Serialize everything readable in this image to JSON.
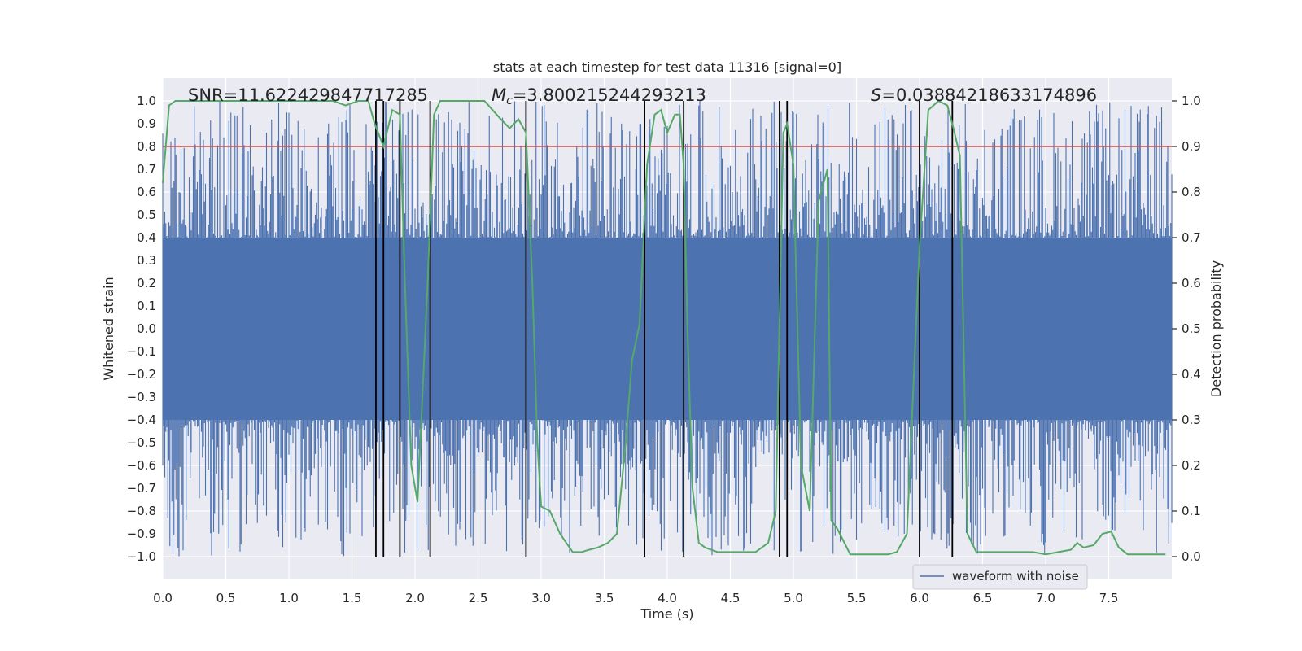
{
  "chart_data": {
    "type": "line",
    "title": "stats at each timestep for test data 11316 [signal=0]",
    "xlabel": "Time (s)",
    "ylabel_left": "Whitened strain",
    "ylabel_right": "Detection probability",
    "xlim": [
      0,
      8
    ],
    "ylim_left": [
      -1.1,
      1.1
    ],
    "ylim_right": [
      -0.05,
      1.05
    ],
    "x_ticks": [
      0.0,
      0.5,
      1.0,
      1.5,
      2.0,
      2.5,
      3.0,
      3.5,
      4.0,
      4.5,
      5.0,
      5.5,
      6.0,
      6.5,
      7.0,
      7.5
    ],
    "x_tick_labels": [
      "0.0",
      "0.5",
      "1.0",
      "1.5",
      "2.0",
      "2.5",
      "3.0",
      "3.5",
      "4.0",
      "4.5",
      "5.0",
      "5.5",
      "6.0",
      "6.5",
      "7.0",
      "7.5"
    ],
    "y_left_ticks": [
      -1.0,
      -0.9,
      -0.8,
      -0.7,
      -0.6,
      -0.5,
      -0.4,
      -0.3,
      -0.2,
      -0.1,
      0.0,
      0.1,
      0.2,
      0.3,
      0.4,
      0.5,
      0.6,
      0.7,
      0.8,
      0.9,
      1.0
    ],
    "y_left_tick_labels": [
      "−1.0",
      "−0.9",
      "−0.8",
      "−0.7",
      "−0.6",
      "−0.5",
      "−0.4",
      "−0.3",
      "−0.2",
      "−0.1",
      "0.0",
      "0.1",
      "0.2",
      "0.3",
      "0.4",
      "0.5",
      "0.6",
      "0.7",
      "0.8",
      "0.9",
      "1.0"
    ],
    "y_right_ticks": [
      0.0,
      0.1,
      0.2,
      0.3,
      0.4,
      0.5,
      0.6,
      0.7,
      0.8,
      0.9,
      1.0
    ],
    "y_right_tick_labels": [
      "0.0",
      "0.1",
      "0.2",
      "0.3",
      "0.4",
      "0.5",
      "0.6",
      "0.7",
      "0.8",
      "0.9",
      "1.0"
    ],
    "grid": true,
    "annotations": {
      "snr": "SNR=11.622429847717285",
      "mc_symbol": "M",
      "mc_sub": "c",
      "mc_value": "=3.800215244293213",
      "s_symbol": "S",
      "s_value": "=0.03884218633174896"
    },
    "legend": {
      "placement": "lower-right",
      "entries": [
        "waveform with noise"
      ]
    },
    "threshold": {
      "y": 0.8,
      "axis": "left",
      "color": "#c44e52"
    },
    "vertical_lines_x": [
      1.69,
      1.75,
      1.88,
      2.12,
      2.88,
      3.82,
      4.13,
      4.89,
      4.95,
      6.0,
      6.26
    ],
    "series": [
      {
        "name": "waveform with noise",
        "axis": "left",
        "color": "#4c72b0",
        "kind": "noise",
        "core_amplitude": 0.4,
        "spike_amplitude_range": [
          0.4,
          1.0
        ]
      },
      {
        "axis": "right",
        "color": "#55a868",
        "x": [
          0.0,
          0.05,
          0.1,
          0.2,
          0.4,
          0.6,
          0.8,
          1.0,
          1.2,
          1.35,
          1.45,
          1.55,
          1.63,
          1.68,
          1.75,
          1.82,
          1.88,
          1.92,
          1.97,
          2.02,
          2.1,
          2.15,
          2.2,
          2.28,
          2.4,
          2.55,
          2.68,
          2.75,
          2.82,
          2.88,
          2.93,
          2.97,
          3.0,
          3.07,
          3.15,
          3.2,
          3.25,
          3.32,
          3.38,
          3.45,
          3.53,
          3.6,
          3.67,
          3.72,
          3.78,
          3.84,
          3.9,
          3.95,
          4.0,
          4.06,
          4.1,
          4.13,
          4.16,
          4.2,
          4.25,
          4.3,
          4.4,
          4.5,
          4.6,
          4.7,
          4.8,
          4.86,
          4.92,
          4.95,
          5.0,
          5.06,
          5.13,
          5.2,
          5.27,
          5.3,
          5.35,
          5.45,
          5.6,
          5.75,
          5.82,
          5.9,
          6.0,
          6.07,
          6.15,
          6.22,
          6.26,
          6.32,
          6.38,
          6.45,
          6.6,
          6.8,
          6.9,
          7.0,
          7.1,
          7.2,
          7.25,
          7.3,
          7.38,
          7.45,
          7.52,
          7.58,
          7.65,
          7.8,
          7.95
        ],
        "y": [
          0.82,
          0.99,
          1.0,
          1.0,
          1.0,
          1.0,
          1.0,
          1.0,
          1.0,
          1.0,
          0.99,
          1.0,
          1.0,
          0.95,
          0.9,
          0.98,
          0.97,
          0.6,
          0.2,
          0.12,
          0.6,
          0.97,
          1.0,
          1.0,
          1.0,
          1.0,
          0.96,
          0.94,
          0.96,
          0.93,
          0.6,
          0.25,
          0.11,
          0.1,
          0.05,
          0.03,
          0.01,
          0.01,
          0.015,
          0.02,
          0.03,
          0.05,
          0.25,
          0.43,
          0.51,
          0.86,
          0.97,
          0.98,
          0.93,
          0.97,
          0.97,
          0.86,
          0.5,
          0.15,
          0.03,
          0.02,
          0.01,
          0.01,
          0.01,
          0.01,
          0.03,
          0.1,
          0.93,
          0.95,
          0.86,
          0.2,
          0.1,
          0.78,
          0.85,
          0.08,
          0.06,
          0.005,
          0.005,
          0.005,
          0.01,
          0.05,
          0.68,
          0.98,
          1.0,
          0.99,
          0.95,
          0.88,
          0.05,
          0.01,
          0.01,
          0.01,
          0.01,
          0.005,
          0.01,
          0.015,
          0.03,
          0.02,
          0.025,
          0.05,
          0.055,
          0.02,
          0.005,
          0.005,
          0.005
        ]
      }
    ]
  }
}
